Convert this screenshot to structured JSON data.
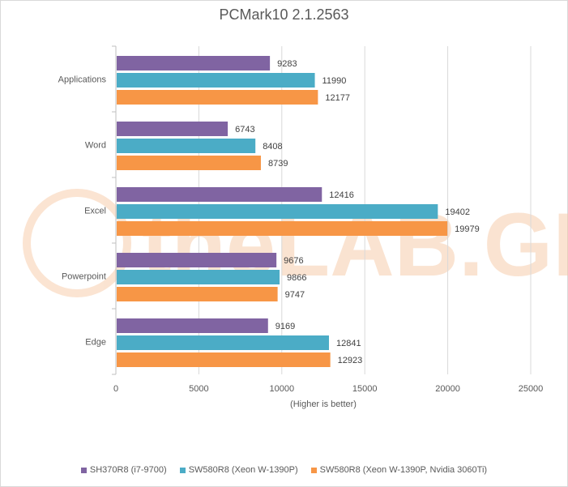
{
  "chart_data": {
    "type": "bar",
    "orientation": "horizontal",
    "title": "PCMark10 2.1.2563",
    "xlabel": "(Higher is better)",
    "ylabel": "",
    "xlim": [
      0,
      25000
    ],
    "xticks": [
      0,
      5000,
      10000,
      15000,
      20000,
      25000
    ],
    "grid": true,
    "legend_position": "bottom",
    "categories": [
      "Applications",
      "Word",
      "Excel",
      "Powerpoint",
      "Edge"
    ],
    "series": [
      {
        "name": "SH370R8 (i7-9700)",
        "color": "#8064a2",
        "values": [
          9283,
          6743,
          12416,
          9676,
          9169
        ]
      },
      {
        "name": "SW580R8 (Xeon W-1390P)",
        "color": "#4bacc6",
        "values": [
          11990,
          8408,
          19402,
          9866,
          12841
        ]
      },
      {
        "name": "SW580R8 (Xeon W-1390P, Nvidia 3060Ti)",
        "color": "#f79646",
        "values": [
          12177,
          8739,
          19979,
          9747,
          12923
        ]
      }
    ]
  },
  "watermark": {
    "text": "theLAB.GR",
    "color": "#f7c9a5"
  }
}
